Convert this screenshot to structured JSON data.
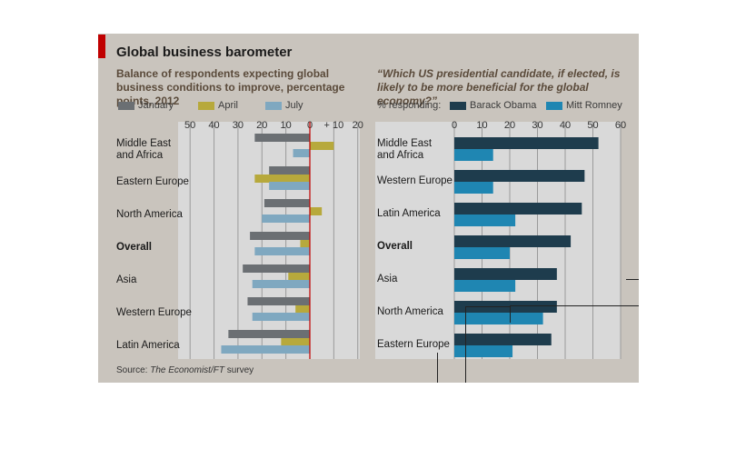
{
  "title": "Global business barometer",
  "source_prefix": "Source: ",
  "source_italic": "The Economist/FT",
  "source_suffix": " survey",
  "colors": {
    "january": "#6b6f73",
    "april": "#b7a93c",
    "july": "#7fa8c0",
    "obama": "#1e3c4d",
    "romney": "#1f86b2",
    "panel": "#c9c4bd",
    "plot": "#d9d9d9",
    "grid": "#9a9a9a",
    "axis": "#c00000"
  },
  "left": {
    "subtitle": "Balance of respondents expecting global business conditions to improve, percentage points, 2012",
    "legend": [
      "January",
      "April",
      "July"
    ]
  },
  "right": {
    "subtitle": "“Which US presidential candidate, if elected, is likely to be more beneficial for the global economy?”",
    "legend_lead": "% responding:",
    "legend": [
      "Barack Obama",
      "Mitt Romney"
    ]
  },
  "chart_data": [
    {
      "type": "bar",
      "orientation": "horizontal",
      "title": "Balance of respondents expecting global business conditions to improve, percentage points, 2012",
      "categories": [
        "Middle East and Africa",
        "Eastern Europe",
        "North America",
        "Overall",
        "Asia",
        "Western Europe",
        "Latin America"
      ],
      "category_lines": [
        [
          "Middle East",
          "and Africa"
        ],
        [
          "Eastern Europe"
        ],
        [
          "North America"
        ],
        [
          "Overall"
        ],
        [
          "Asia"
        ],
        [
          "Western Europe"
        ],
        [
          "Latin America"
        ]
      ],
      "bold_categories": [
        "Overall"
      ],
      "series": [
        {
          "name": "January",
          "values": [
            -23,
            -17,
            -19,
            -25,
            -28,
            -26,
            -34
          ]
        },
        {
          "name": "April",
          "values": [
            10,
            -23,
            5,
            -4,
            -9,
            -6,
            -12
          ]
        },
        {
          "name": "July",
          "values": [
            -7,
            -17,
            -20,
            -23,
            -24,
            -24,
            -37
          ]
        }
      ],
      "xlim": [
        -55,
        20
      ],
      "ticks": [
        -50,
        -40,
        -30,
        -20,
        -10,
        0,
        10,
        20
      ],
      "tick_labels": [
        "50",
        "40",
        "30",
        "20",
        "10",
        "0",
        "+ 10",
        "20"
      ],
      "grid": true
    },
    {
      "type": "bar",
      "orientation": "horizontal",
      "title": "“Which US presidential candidate, if elected, is likely to be more beneficial for the global economy?”",
      "categories": [
        "Middle East and Africa",
        "Western Europe",
        "Latin America",
        "Overall",
        "Asia",
        "North America",
        "Eastern Europe"
      ],
      "category_lines": [
        [
          "Middle East",
          "and Africa"
        ],
        [
          "Western Europe"
        ],
        [
          "Latin America"
        ],
        [
          "Overall"
        ],
        [
          "Asia"
        ],
        [
          "North America"
        ],
        [
          "Eastern Europe"
        ]
      ],
      "bold_categories": [
        "Overall"
      ],
      "series": [
        {
          "name": "Barack Obama",
          "values": [
            52,
            47,
            46,
            42,
            37,
            37,
            35
          ]
        },
        {
          "name": "Mitt Romney",
          "values": [
            14,
            14,
            22,
            20,
            22,
            32,
            21
          ]
        }
      ],
      "xlim": [
        0,
        60
      ],
      "ticks": [
        0,
        10,
        20,
        30,
        40,
        50,
        60
      ],
      "tick_labels": [
        "0",
        "10",
        "20",
        "30",
        "40",
        "50",
        "60"
      ],
      "grid": true
    }
  ]
}
